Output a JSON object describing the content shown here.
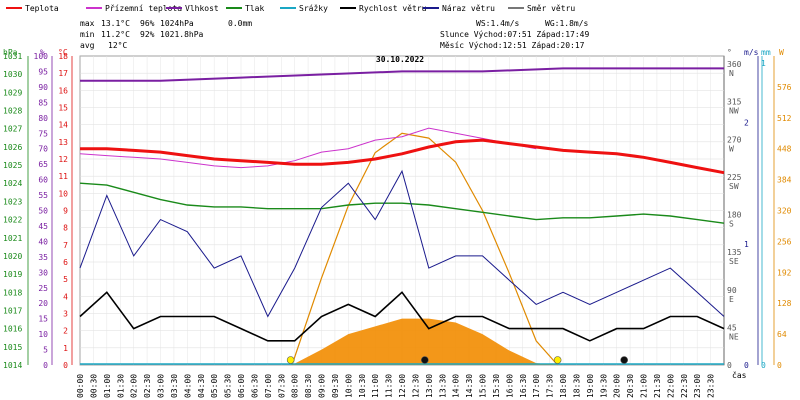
{
  "chart_data": {
    "type": "line",
    "title": "30.10.2022",
    "legend": [
      {
        "name": "Teplota",
        "color": "#ee1111"
      },
      {
        "name": "Přízemní teplota",
        "color": "#cc33cc"
      },
      {
        "name": "Vlhkost",
        "color": "#7a1fa2"
      },
      {
        "name": "Tlak",
        "color": "#1a8a1a"
      },
      {
        "name": "Srážky",
        "color": "#1aa7c4"
      },
      {
        "name": "Rychlost větru",
        "color": "#000000"
      },
      {
        "name": "Náraz větru",
        "color": "#1a1a8c"
      },
      {
        "name": "Směr větru",
        "color": "#777777"
      }
    ],
    "stats": {
      "max": {
        "label": "max",
        "temp": "13.1°C",
        "hum": "96%",
        "press": "1024hPa",
        "rain": "0.0mm"
      },
      "min": {
        "label": "min",
        "temp": "11.2°C",
        "hum": "92%",
        "press": "1021.8hPa"
      },
      "avg": {
        "label": "avg",
        "temp": "12°C"
      }
    },
    "info": {
      "ws": "WS:1.4m/s",
      "wg": "WG:1.8m/s",
      "sun": "Slunce Východ:07:51  Západ:17:49",
      "moon": "Měsíc  Východ:12:51  Západ:20:17"
    },
    "axes": {
      "hpa": {
        "unit": "hPa",
        "min": 1014,
        "max": 1031,
        "ticks": [
          "1014",
          "1015",
          "1016",
          "1017",
          "1018",
          "1019",
          "1020",
          "1021",
          "1022",
          "1023",
          "1024",
          "1025",
          "1026",
          "1027",
          "1028",
          "1029",
          "1030",
          "1031"
        ]
      },
      "pct": {
        "unit": "%",
        "min": 0,
        "max": 100,
        "ticks": [
          "0",
          "5",
          "10",
          "15",
          "20",
          "25",
          "30",
          "35",
          "40",
          "45",
          "50",
          "55",
          "60",
          "65",
          "70",
          "75",
          "80",
          "85",
          "90",
          "95",
          "100"
        ]
      },
      "degc": {
        "unit": "°C",
        "min": 0,
        "max": 18,
        "ticks": [
          "0",
          "1",
          "2",
          "3",
          "4",
          "5",
          "6",
          "7",
          "8",
          "9",
          "10",
          "11",
          "12",
          "13",
          "14",
          "15",
          "16",
          "17",
          "18"
        ]
      },
      "dir": {
        "unit": "°",
        "ticks": [
          {
            "v": "360",
            "l": "N"
          },
          {
            "v": "315",
            "l": "NW"
          },
          {
            "v": "270",
            "l": "W"
          },
          {
            "v": "225",
            "l": "SW"
          },
          {
            "v": "180",
            "l": "S"
          },
          {
            "v": "135",
            "l": "SE"
          },
          {
            "v": "90",
            "l": "E"
          },
          {
            "v": "45",
            "l": "NE"
          },
          {
            "v": "0",
            "l": ""
          }
        ]
      },
      "ms": {
        "unit": "m/s",
        "ticks": [
          "2",
          "1",
          "0"
        ]
      },
      "mm": {
        "unit": "mm",
        "ticks": [
          "1",
          "0"
        ]
      },
      "wm2": {
        "unit": "W",
        "ticks": [
          "576",
          "512",
          "448",
          "384",
          "320",
          "256",
          "192",
          "128",
          "64",
          "0"
        ]
      },
      "time_label": "čas",
      "x_ticks": [
        "00:00",
        "00:30",
        "01:00",
        "01:30",
        "02:00",
        "02:30",
        "03:00",
        "03:30",
        "04:00",
        "04:30",
        "05:00",
        "05:30",
        "06:00",
        "06:30",
        "07:00",
        "07:30",
        "08:00",
        "08:30",
        "09:00",
        "09:30",
        "10:00",
        "10:30",
        "11:00",
        "11:30",
        "12:00",
        "12:30",
        "13:00",
        "13:30",
        "14:00",
        "14:30",
        "15:00",
        "15:30",
        "16:00",
        "16:30",
        "17:00",
        "17:30",
        "18:00",
        "18:30",
        "19:00",
        "19:30",
        "20:00",
        "20:30",
        "21:00",
        "21:30",
        "22:00",
        "22:30",
        "23:00",
        "23:30"
      ]
    },
    "series": {
      "temperature": {
        "x": [
          0,
          1,
          2,
          3,
          4,
          5,
          6,
          7,
          8,
          9,
          10,
          11,
          12,
          13,
          14,
          15,
          16,
          17,
          18,
          19,
          20,
          21,
          22,
          23,
          24
        ],
        "y": [
          12.6,
          12.6,
          12.5,
          12.4,
          12.2,
          12.0,
          11.9,
          11.8,
          11.7,
          11.7,
          11.8,
          12.0,
          12.3,
          12.7,
          13.0,
          13.1,
          12.9,
          12.7,
          12.5,
          12.4,
          12.3,
          12.1,
          11.8,
          11.5,
          11.2
        ]
      },
      "ground_temperature": {
        "x": [
          0,
          1,
          2,
          3,
          4,
          5,
          6,
          7,
          8,
          9,
          10,
          11,
          12,
          13,
          14,
          15,
          16,
          17
        ],
        "y": [
          12.3,
          12.2,
          12.1,
          12.0,
          11.8,
          11.6,
          11.5,
          11.6,
          11.9,
          12.4,
          12.6,
          13.1,
          13.3,
          13.8,
          13.5,
          13.2,
          12.9,
          12.6
        ]
      },
      "humidity": {
        "x": [
          0,
          3,
          6,
          9,
          12,
          15,
          18,
          21,
          24
        ],
        "y": [
          92,
          92,
          93,
          94,
          95,
          95,
          96,
          96,
          96
        ]
      },
      "pressure": {
        "x": [
          0,
          1,
          2,
          3,
          4,
          5,
          6,
          7,
          8,
          9,
          10,
          11,
          12,
          13,
          14,
          15,
          16,
          17,
          18,
          19,
          20,
          21,
          22,
          23,
          24
        ],
        "y": [
          1024.0,
          1023.9,
          1023.5,
          1023.1,
          1022.8,
          1022.7,
          1022.7,
          1022.6,
          1022.6,
          1022.6,
          1022.8,
          1022.9,
          1022.9,
          1022.8,
          1022.6,
          1022.4,
          1022.2,
          1022.0,
          1022.1,
          1022.1,
          1022.2,
          1022.3,
          1022.2,
          1022.0,
          1021.8
        ]
      },
      "wind_speed": {
        "x": [
          0,
          1,
          2,
          3,
          4,
          5,
          6,
          7,
          8,
          9,
          10,
          11,
          12,
          13,
          14,
          15,
          16,
          17,
          18,
          19,
          20,
          21,
          22,
          23,
          24
        ],
        "y": [
          0.4,
          0.6,
          0.3,
          0.4,
          0.4,
          0.4,
          0.3,
          0.2,
          0.2,
          0.4,
          0.5,
          0.4,
          0.6,
          0.3,
          0.4,
          0.4,
          0.3,
          0.3,
          0.3,
          0.2,
          0.3,
          0.3,
          0.4,
          0.4,
          0.3
        ]
      },
      "wind_gust": {
        "x": [
          0,
          1,
          2,
          3,
          4,
          5,
          6,
          7,
          8,
          9,
          10,
          11,
          12,
          13,
          14,
          15,
          16,
          17,
          18,
          19,
          20,
          21,
          22,
          23,
          24
        ],
        "y": [
          0.8,
          1.4,
          0.9,
          1.2,
          1.1,
          0.8,
          0.9,
          0.4,
          0.8,
          1.3,
          1.5,
          1.2,
          1.6,
          0.8,
          0.9,
          0.9,
          0.7,
          0.5,
          0.6,
          0.5,
          0.6,
          0.7,
          0.8,
          0.6,
          0.4
        ]
      },
      "solar": {
        "x": [
          7.9,
          9,
          10,
          11,
          12,
          13,
          14,
          15,
          16,
          17,
          17.8
        ],
        "y": [
          0,
          32,
          64,
          80,
          96,
          96,
          88,
          64,
          30,
          4,
          0
        ]
      },
      "solar_curve": {
        "x": [
          7.9,
          9,
          10,
          11,
          12,
          13,
          14,
          15,
          16,
          17,
          17.8
        ],
        "y": [
          0,
          180,
          330,
          440,
          480,
          470,
          420,
          320,
          190,
          50,
          0
        ]
      }
    }
  }
}
